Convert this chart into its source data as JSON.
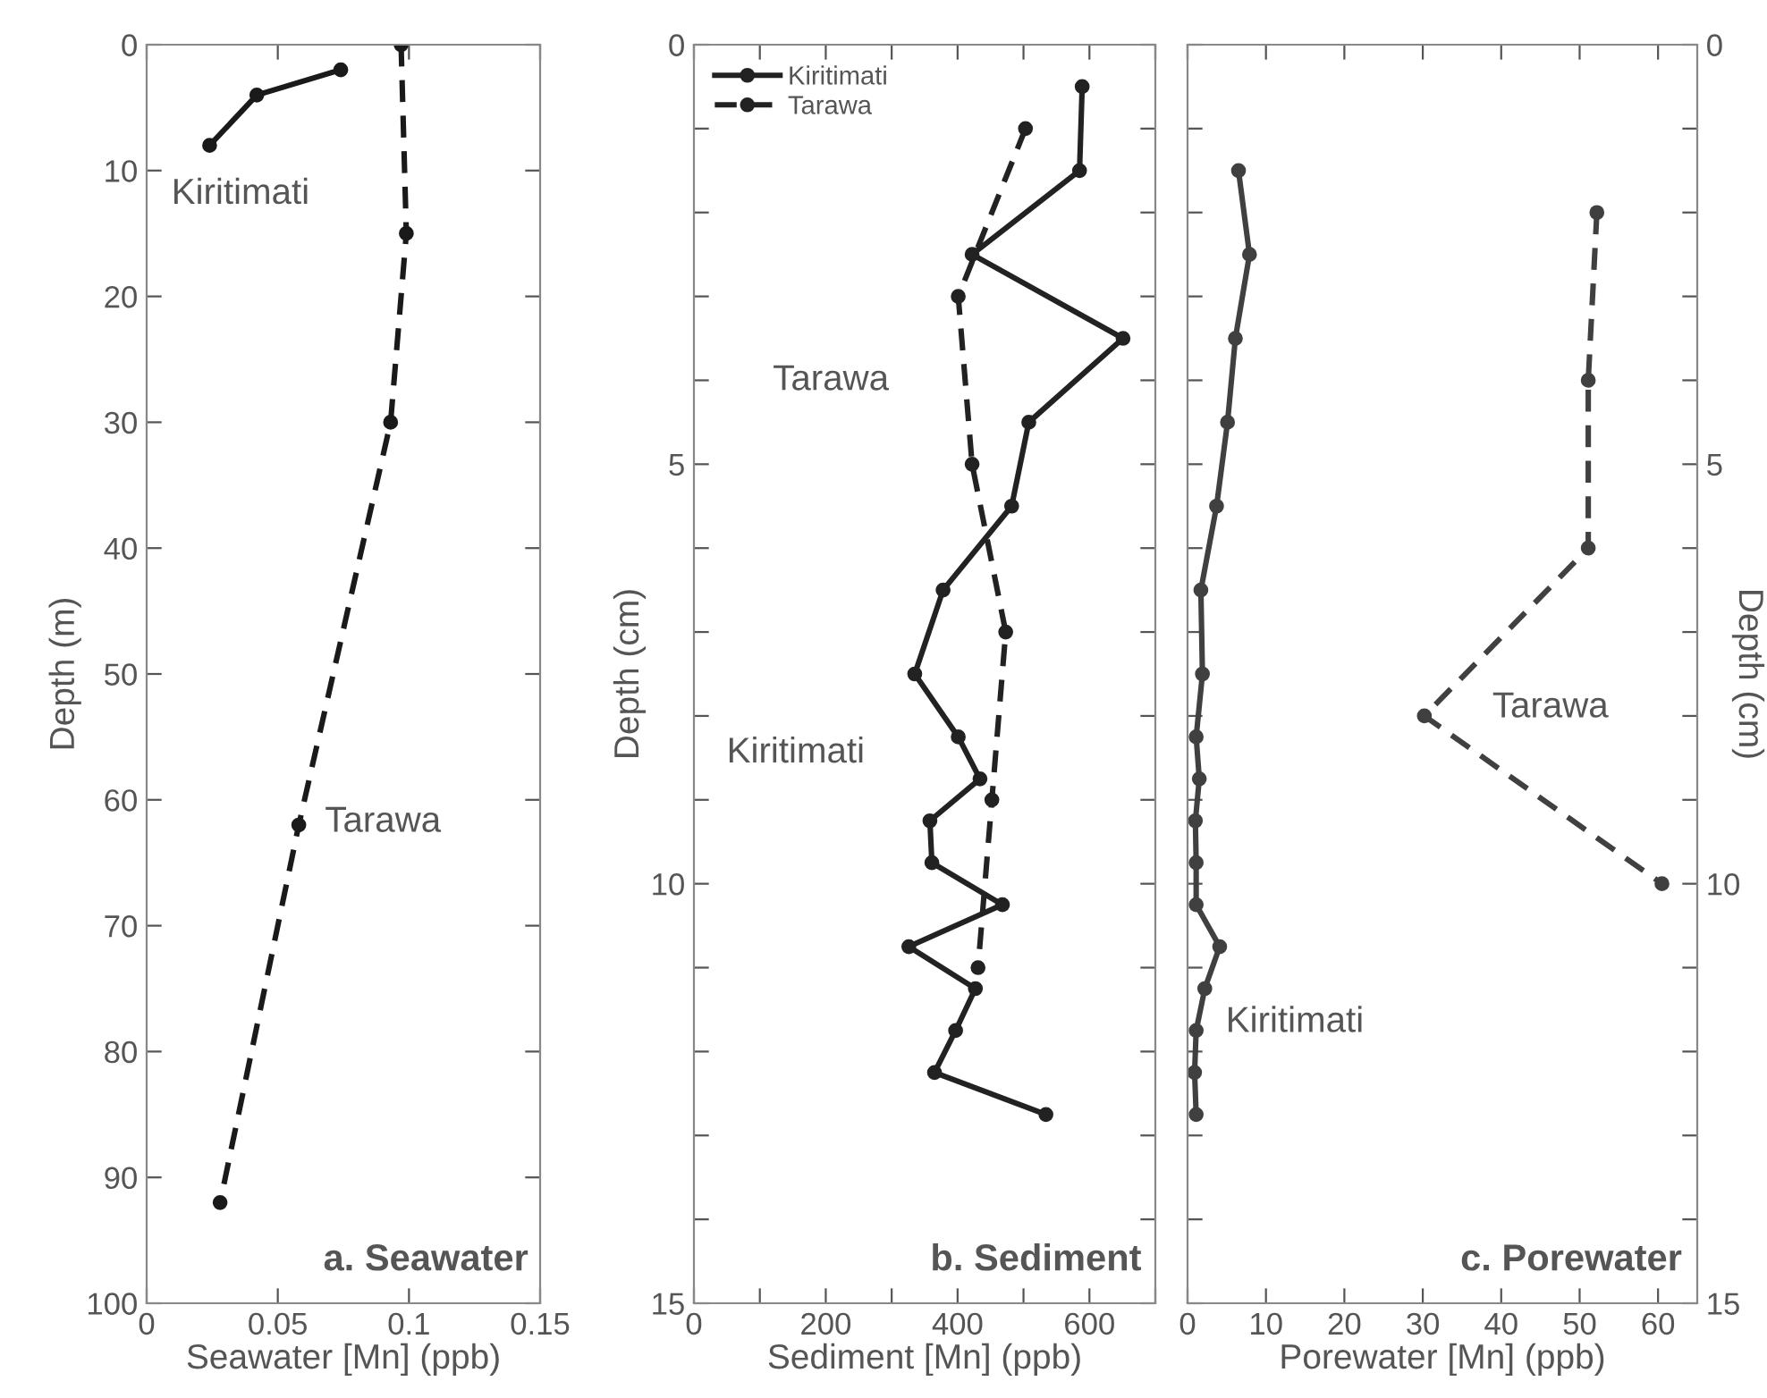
{
  "chart_data": [
    {
      "type": "line",
      "xlabel": "Seawater [Mn] (ppb)",
      "ylabel": "Depth (m)",
      "xlim": [
        0,
        0.15
      ],
      "ylim": [
        100,
        0
      ],
      "xticks": [
        0,
        0.05,
        0.1,
        0.15
      ],
      "yticks": [
        0,
        10,
        20,
        30,
        40,
        50,
        60,
        70,
        80,
        90,
        100
      ],
      "marker": "circle",
      "grid": false,
      "legend": false,
      "series": [
        {
          "color": "#1a1a1a",
          "line_style": "solid",
          "x": [
            0.074,
            0.042,
            0.024
          ],
          "values": [
            2,
            4,
            8
          ]
        },
        {
          "color": "#1a1a1a",
          "line_style": "dashed",
          "x": [
            0.097,
            0.099,
            0.093,
            0.058,
            0.028
          ],
          "values": [
            0,
            15,
            30,
            62,
            92
          ]
        }
      ],
      "annotations": [
        "Kiritimati",
        "Tarawa",
        "a. Seawater"
      ]
    },
    {
      "type": "line",
      "xlabel": "Sediment [Mn] (ppb)",
      "ylabel": "Depth (cm)",
      "xlim": [
        0,
        700
      ],
      "ylim": [
        15,
        0
      ],
      "xticks": [
        0,
        {
          "value": 100,
          "label": null
        },
        200,
        {
          "value": 300,
          "label": null
        },
        400,
        {
          "value": 500,
          "label": null
        },
        600,
        {
          "value": 700,
          "label": null
        }
      ],
      "yticks": [
        0,
        {
          "value": 1,
          "label": null
        },
        {
          "value": 2,
          "label": null
        },
        {
          "value": 3,
          "label": null
        },
        {
          "value": 4,
          "label": null
        },
        5,
        {
          "value": 6,
          "label": null
        },
        {
          "value": 7,
          "label": null
        },
        {
          "value": 8,
          "label": null
        },
        {
          "value": 9,
          "label": null
        },
        10,
        {
          "value": 11,
          "label": null
        },
        {
          "value": 12,
          "label": null
        },
        {
          "value": 13,
          "label": null
        },
        {
          "value": 14,
          "label": null
        },
        15
      ],
      "marker": "circle",
      "grid": false,
      "legend": "top left",
      "series": [
        {
          "name": "Kiritimati",
          "color": "#222222",
          "line_style": "solid",
          "x": [
            589,
            585,
            422,
            651,
            508,
            482,
            378,
            335,
            401,
            434,
            358,
            361,
            468,
            326,
            427,
            397,
            365,
            534
          ],
          "values": [
            0.5,
            1.5,
            2.5,
            3.5,
            4.5,
            5.5,
            6.5,
            7.5,
            8.25,
            8.75,
            9.25,
            9.75,
            10.25,
            10.75,
            11.25,
            11.75,
            12.25,
            12.75
          ]
        },
        {
          "name": "Tarawa",
          "color": "#222222",
          "line_style": "dashed",
          "x": [
            503,
            401,
            422,
            473,
            452,
            431
          ],
          "values": [
            1,
            3,
            5,
            7,
            9,
            11
          ]
        }
      ],
      "annotations": [
        "Tarawa",
        "Kiritimati",
        "b. Sediment"
      ]
    },
    {
      "type": "line",
      "xlabel": "Porewater [Mn] (ppb)",
      "ylabel": "Depth (cm)",
      "xlim": [
        0,
        65
      ],
      "ylim": [
        15,
        0
      ],
      "xticks": [
        0,
        10,
        20,
        30,
        40,
        50,
        60
      ],
      "yticks": [
        0,
        {
          "value": 1,
          "label": null
        },
        {
          "value": 2,
          "label": null
        },
        {
          "value": 3,
          "label": null
        },
        {
          "value": 4,
          "label": null
        },
        5,
        {
          "value": 6,
          "label": null
        },
        {
          "value": 7,
          "label": null
        },
        {
          "value": 8,
          "label": null
        },
        {
          "value": 9,
          "label": null
        },
        10,
        {
          "value": 11,
          "label": null
        },
        {
          "value": 12,
          "label": null
        },
        {
          "value": 13,
          "label": null
        },
        {
          "value": 14,
          "label": null
        },
        15
      ],
      "marker": "circle",
      "grid": false,
      "legend": false,
      "series": [
        {
          "color": "#404040",
          "line_style": "solid",
          "x": [
            6.5,
            7.9,
            6.1,
            5.1,
            3.7,
            1.7,
            1.9,
            1.1,
            1.5,
            1.0,
            1.1,
            1.1,
            4.1,
            2.2,
            1.1,
            0.9,
            1.1
          ],
          "values": [
            1.5,
            2.5,
            3.5,
            4.5,
            5.5,
            6.5,
            7.5,
            8.25,
            8.75,
            9.25,
            9.75,
            10.25,
            10.75,
            11.25,
            11.75,
            12.25,
            12.75
          ]
        },
        {
          "color": "#404040",
          "line_style": "dashed",
          "x": [
            52.2,
            51.1,
            51.1,
            30.2,
            60.5
          ],
          "values": [
            2,
            4,
            6,
            8,
            10
          ]
        }
      ],
      "annotations": [
        "Tarawa",
        "Kiritimati",
        "c. Porewater"
      ]
    }
  ]
}
